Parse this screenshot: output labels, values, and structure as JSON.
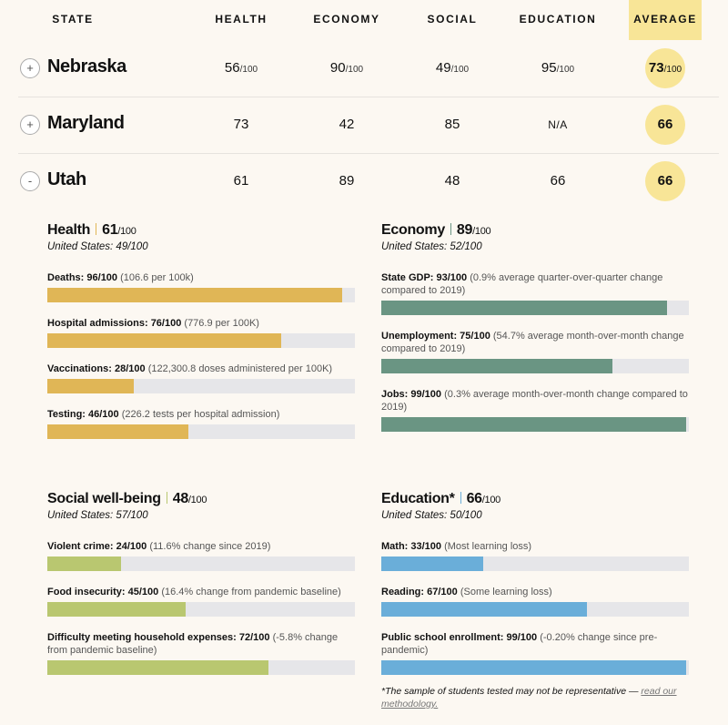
{
  "table": {
    "headers": [
      "STATE",
      "HEALTH",
      "ECONOMY",
      "SOCIAL",
      "EDUCATION",
      "AVERAGE"
    ],
    "out_of": "/100",
    "rows": [
      {
        "toggle": "+",
        "state": "Nebraska",
        "health": "56",
        "economy": "90",
        "social": "49",
        "education": "95",
        "average": "73",
        "show_out_of": true
      },
      {
        "toggle": "+",
        "state": "Maryland",
        "health": "73",
        "economy": "42",
        "social": "85",
        "education": "N/A",
        "average": "66",
        "show_out_of": false
      },
      {
        "toggle": "-",
        "state": "Utah",
        "health": "61",
        "economy": "89",
        "social": "48",
        "education": "66",
        "average": "66",
        "show_out_of": false
      }
    ]
  },
  "colors": {
    "highlight": "#f8e597",
    "health": "#e0b656",
    "economy": "#6a9583",
    "social": "#b9c770",
    "education": "#6aaed9",
    "track": "#e6e6e9"
  },
  "panels": [
    {
      "key": "health",
      "title": "Health",
      "score": "61",
      "out_of": "/100",
      "us": "United States: 49/100",
      "items": [
        {
          "label": "Deaths: 96/100",
          "detail": "(106.6 per 100k)",
          "value": 96
        },
        {
          "label": "Hospital admissions: 76/100",
          "detail": "(776.9 per 100K)",
          "value": 76
        },
        {
          "label": "Vaccinations: 28/100",
          "detail": "(122,300.8 doses administered per 100K)",
          "value": 28
        },
        {
          "label": "Testing: 46/100",
          "detail": "(226.2 tests per hospital admission)",
          "value": 46
        }
      ]
    },
    {
      "key": "economy",
      "title": "Economy",
      "score": "89",
      "out_of": "/100",
      "us": "United States: 52/100",
      "items": [
        {
          "label": "State GDP: 93/100",
          "detail": "(0.9% average quarter-over-quarter change compared to 2019)",
          "value": 93
        },
        {
          "label": "Unemployment: 75/100",
          "detail": "(54.7% average month-over-month change compared to 2019)",
          "value": 75
        },
        {
          "label": "Jobs: 99/100",
          "detail": "(0.3% average month-over-month change compared to 2019)",
          "value": 99
        }
      ]
    },
    {
      "key": "social",
      "title": "Social well-being",
      "score": "48",
      "out_of": "/100",
      "us": "United States: 57/100",
      "items": [
        {
          "label": "Violent crime: 24/100",
          "detail": "(11.6% change since 2019)",
          "value": 24
        },
        {
          "label": "Food insecurity: 45/100",
          "detail": "(16.4% change from pandemic baseline)",
          "value": 45
        },
        {
          "label": "Difficulty meeting household expenses: 72/100",
          "detail": "(-5.8% change from pandemic baseline)",
          "value": 72
        }
      ]
    },
    {
      "key": "education",
      "title": "Education*",
      "score": "66",
      "out_of": "/100",
      "us": "United States: 50/100",
      "items": [
        {
          "label": "Math: 33/100",
          "detail": "(Most learning loss)",
          "value": 33
        },
        {
          "label": "Reading: 67/100",
          "detail": "(Some learning loss)",
          "value": 67
        },
        {
          "label": "Public school enrollment: 99/100",
          "detail": "(-0.20% change since pre-pandemic)",
          "value": 99
        }
      ]
    }
  ],
  "footnote": {
    "text": "*The sample of students tested may not be representative — ",
    "link": "read our methodology."
  }
}
